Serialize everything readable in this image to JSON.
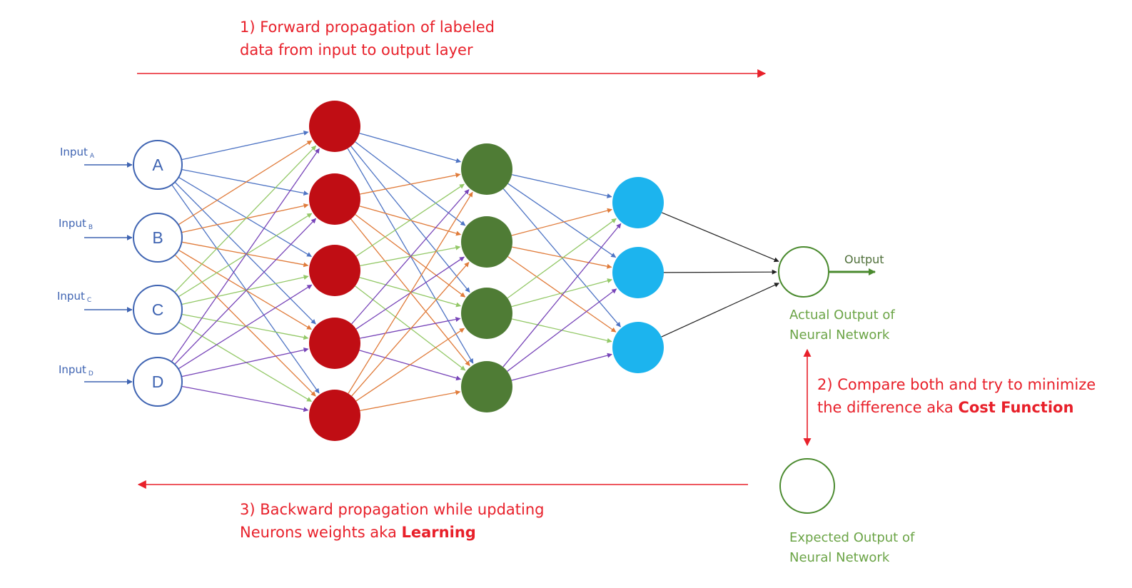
{
  "steps": {
    "forward": {
      "line1": "1) Forward propagation of labeled",
      "line2": "data from input to output layer"
    },
    "compare": {
      "line1": "2) Compare both and try to minimize",
      "line2_text": "the difference aka ",
      "line2_bold": "Cost Function"
    },
    "backward": {
      "line1": "3) Backward propagation while updating",
      "line2_text": "Neurons weights aka ",
      "line2_bold": "Learning"
    }
  },
  "inputs": [
    {
      "letter": "A",
      "label": "Input",
      "sub": "A"
    },
    {
      "letter": "B",
      "label": "Input",
      "sub": "B"
    },
    {
      "letter": "C",
      "label": "Input",
      "sub": "C"
    },
    {
      "letter": "D",
      "label": "Input",
      "sub": "D"
    }
  ],
  "output_label": "Output",
  "actual_output": {
    "line1": "Actual Output of",
    "line2": "Neural Network"
  },
  "expected_output": {
    "line1": "Expected Output of",
    "line2": "Neural Network"
  },
  "colors": {
    "step_text": "#e8202a",
    "arrow_red": "#e8202a",
    "input_stroke": "#3f64b2",
    "hidden1_fill": "#c00d14",
    "hidden2_fill": "#4f7c35",
    "hidden3_fill": "#1cb4ee",
    "output_stroke": "#4a8a2e",
    "caption_green": "#6ba446",
    "edge_blue": "#4e74c4",
    "edge_orange": "#e07b3a",
    "edge_green": "#93c867",
    "edge_purple": "#7744b8",
    "edge_black": "#222222"
  }
}
